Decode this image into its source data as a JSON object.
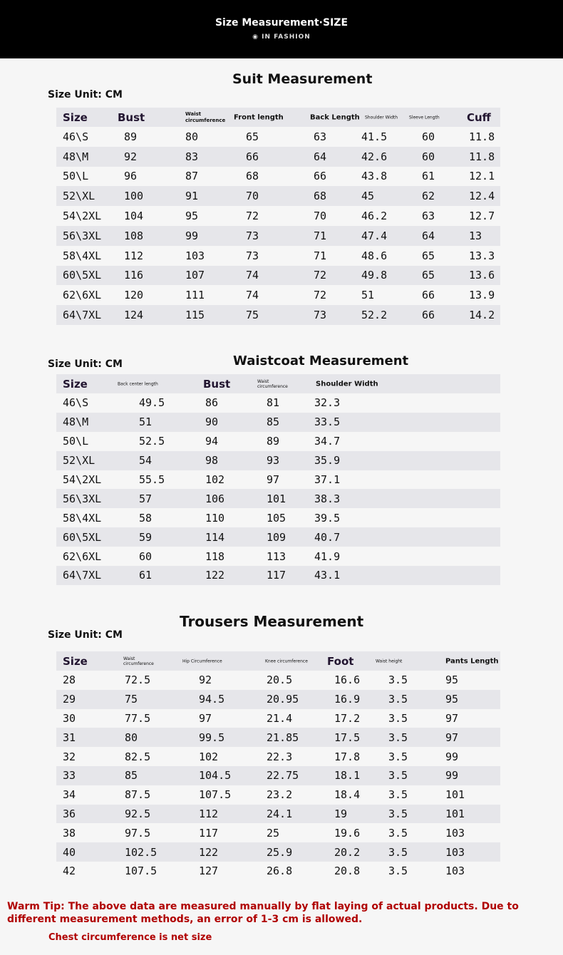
{
  "banner": {
    "title": "Size Measurement·SIZE",
    "subtitle": "◉ IN FASHION"
  },
  "suit": {
    "title": "Suit Measurement",
    "unit": "Size Unit: CM",
    "headers": [
      "Size",
      "Bust",
      "Waist circumference",
      "Front length",
      "Back Length",
      "Shoulder Width",
      "Sleeve Length",
      "Cuff"
    ],
    "rows": [
      [
        "46\\S",
        "89",
        "80",
        "65",
        "63",
        "41.5",
        "60",
        "11.8"
      ],
      [
        "48\\M",
        "92",
        "83",
        "66",
        "64",
        "42.6",
        "60",
        "11.8"
      ],
      [
        "50\\L",
        "96",
        "87",
        "68",
        "66",
        "43.8",
        "61",
        "12.1"
      ],
      [
        "52\\XL",
        "100",
        "91",
        "70",
        "68",
        "45",
        "62",
        "12.4"
      ],
      [
        "54\\2XL",
        "104",
        "95",
        "72",
        "70",
        "46.2",
        "63",
        "12.7"
      ],
      [
        "56\\3XL",
        "108",
        "99",
        "73",
        "71",
        "47.4",
        "64",
        "13"
      ],
      [
        "58\\4XL",
        "112",
        "103",
        "73",
        "71",
        "48.6",
        "65",
        "13.3"
      ],
      [
        "60\\5XL",
        "116",
        "107",
        "74",
        "72",
        "49.8",
        "65",
        "13.6"
      ],
      [
        "62\\6XL",
        "120",
        "111",
        "74",
        "72",
        "51",
        "66",
        "13.9"
      ],
      [
        "64\\7XL",
        "124",
        "115",
        "75",
        "73",
        "52.2",
        "66",
        "14.2"
      ]
    ]
  },
  "waistcoat": {
    "title": "Waistcoat Measurement",
    "unit": "Size Unit: CM",
    "headers": [
      "Size",
      "Back center length",
      "Bust",
      "Waist circumference",
      "Shoulder Width"
    ],
    "rows": [
      [
        "46\\S",
        "49.5",
        "86",
        "81",
        "32.3"
      ],
      [
        "48\\M",
        "51",
        "90",
        "85",
        "33.5"
      ],
      [
        "50\\L",
        "52.5",
        "94",
        "89",
        "34.7"
      ],
      [
        "52\\XL",
        "54",
        "98",
        "93",
        "35.9"
      ],
      [
        "54\\2XL",
        "55.5",
        "102",
        "97",
        "37.1"
      ],
      [
        "56\\3XL",
        "57",
        "106",
        "101",
        "38.3"
      ],
      [
        "58\\4XL",
        "58",
        "110",
        "105",
        "39.5"
      ],
      [
        "60\\5XL",
        "59",
        "114",
        "109",
        "40.7"
      ],
      [
        "62\\6XL",
        "60",
        "118",
        "113",
        "41.9"
      ],
      [
        "64\\7XL",
        "61",
        "122",
        "117",
        "43.1"
      ]
    ]
  },
  "trousers": {
    "title": "Trousers Measurement",
    "unit": "Size Unit: CM",
    "headers": [
      "Size",
      "Waist circumference",
      "Hip Circumference",
      "Knee circumference",
      "Foot",
      "Waist height",
      "Pants Length"
    ],
    "rows": [
      [
        "28",
        "72.5",
        "92",
        "20.5",
        "16.6",
        "3.5",
        "95"
      ],
      [
        "29",
        "75",
        "94.5",
        "20.95",
        "16.9",
        "3.5",
        "95"
      ],
      [
        "30",
        "77.5",
        "97",
        "21.4",
        "17.2",
        "3.5",
        "97"
      ],
      [
        "31",
        "80",
        "99.5",
        "21.85",
        "17.5",
        "3.5",
        "97"
      ],
      [
        "32",
        "82.5",
        "102",
        "22.3",
        "17.8",
        "3.5",
        "99"
      ],
      [
        "33",
        "85",
        "104.5",
        "22.75",
        "18.1",
        "3.5",
        "99"
      ],
      [
        "34",
        "87.5",
        "107.5",
        "23.2",
        "18.4",
        "3.5",
        "101"
      ],
      [
        "36",
        "92.5",
        "112",
        "24.1",
        "19",
        "3.5",
        "101"
      ],
      [
        "38",
        "97.5",
        "117",
        "25",
        "19.6",
        "3.5",
        "103"
      ],
      [
        "40",
        "102.5",
        "122",
        "25.9",
        "20.2",
        "3.5",
        "103"
      ],
      [
        "42",
        "107.5",
        "127",
        "26.8",
        "20.8",
        "3.5",
        "103"
      ]
    ]
  },
  "footer": {
    "tip": "Warm Tip: The above data are measured manually by flat laying of actual products. Due to different measurement methods, an error of 1-3 cm is allowed.",
    "note": "Chest circumference is net size"
  }
}
